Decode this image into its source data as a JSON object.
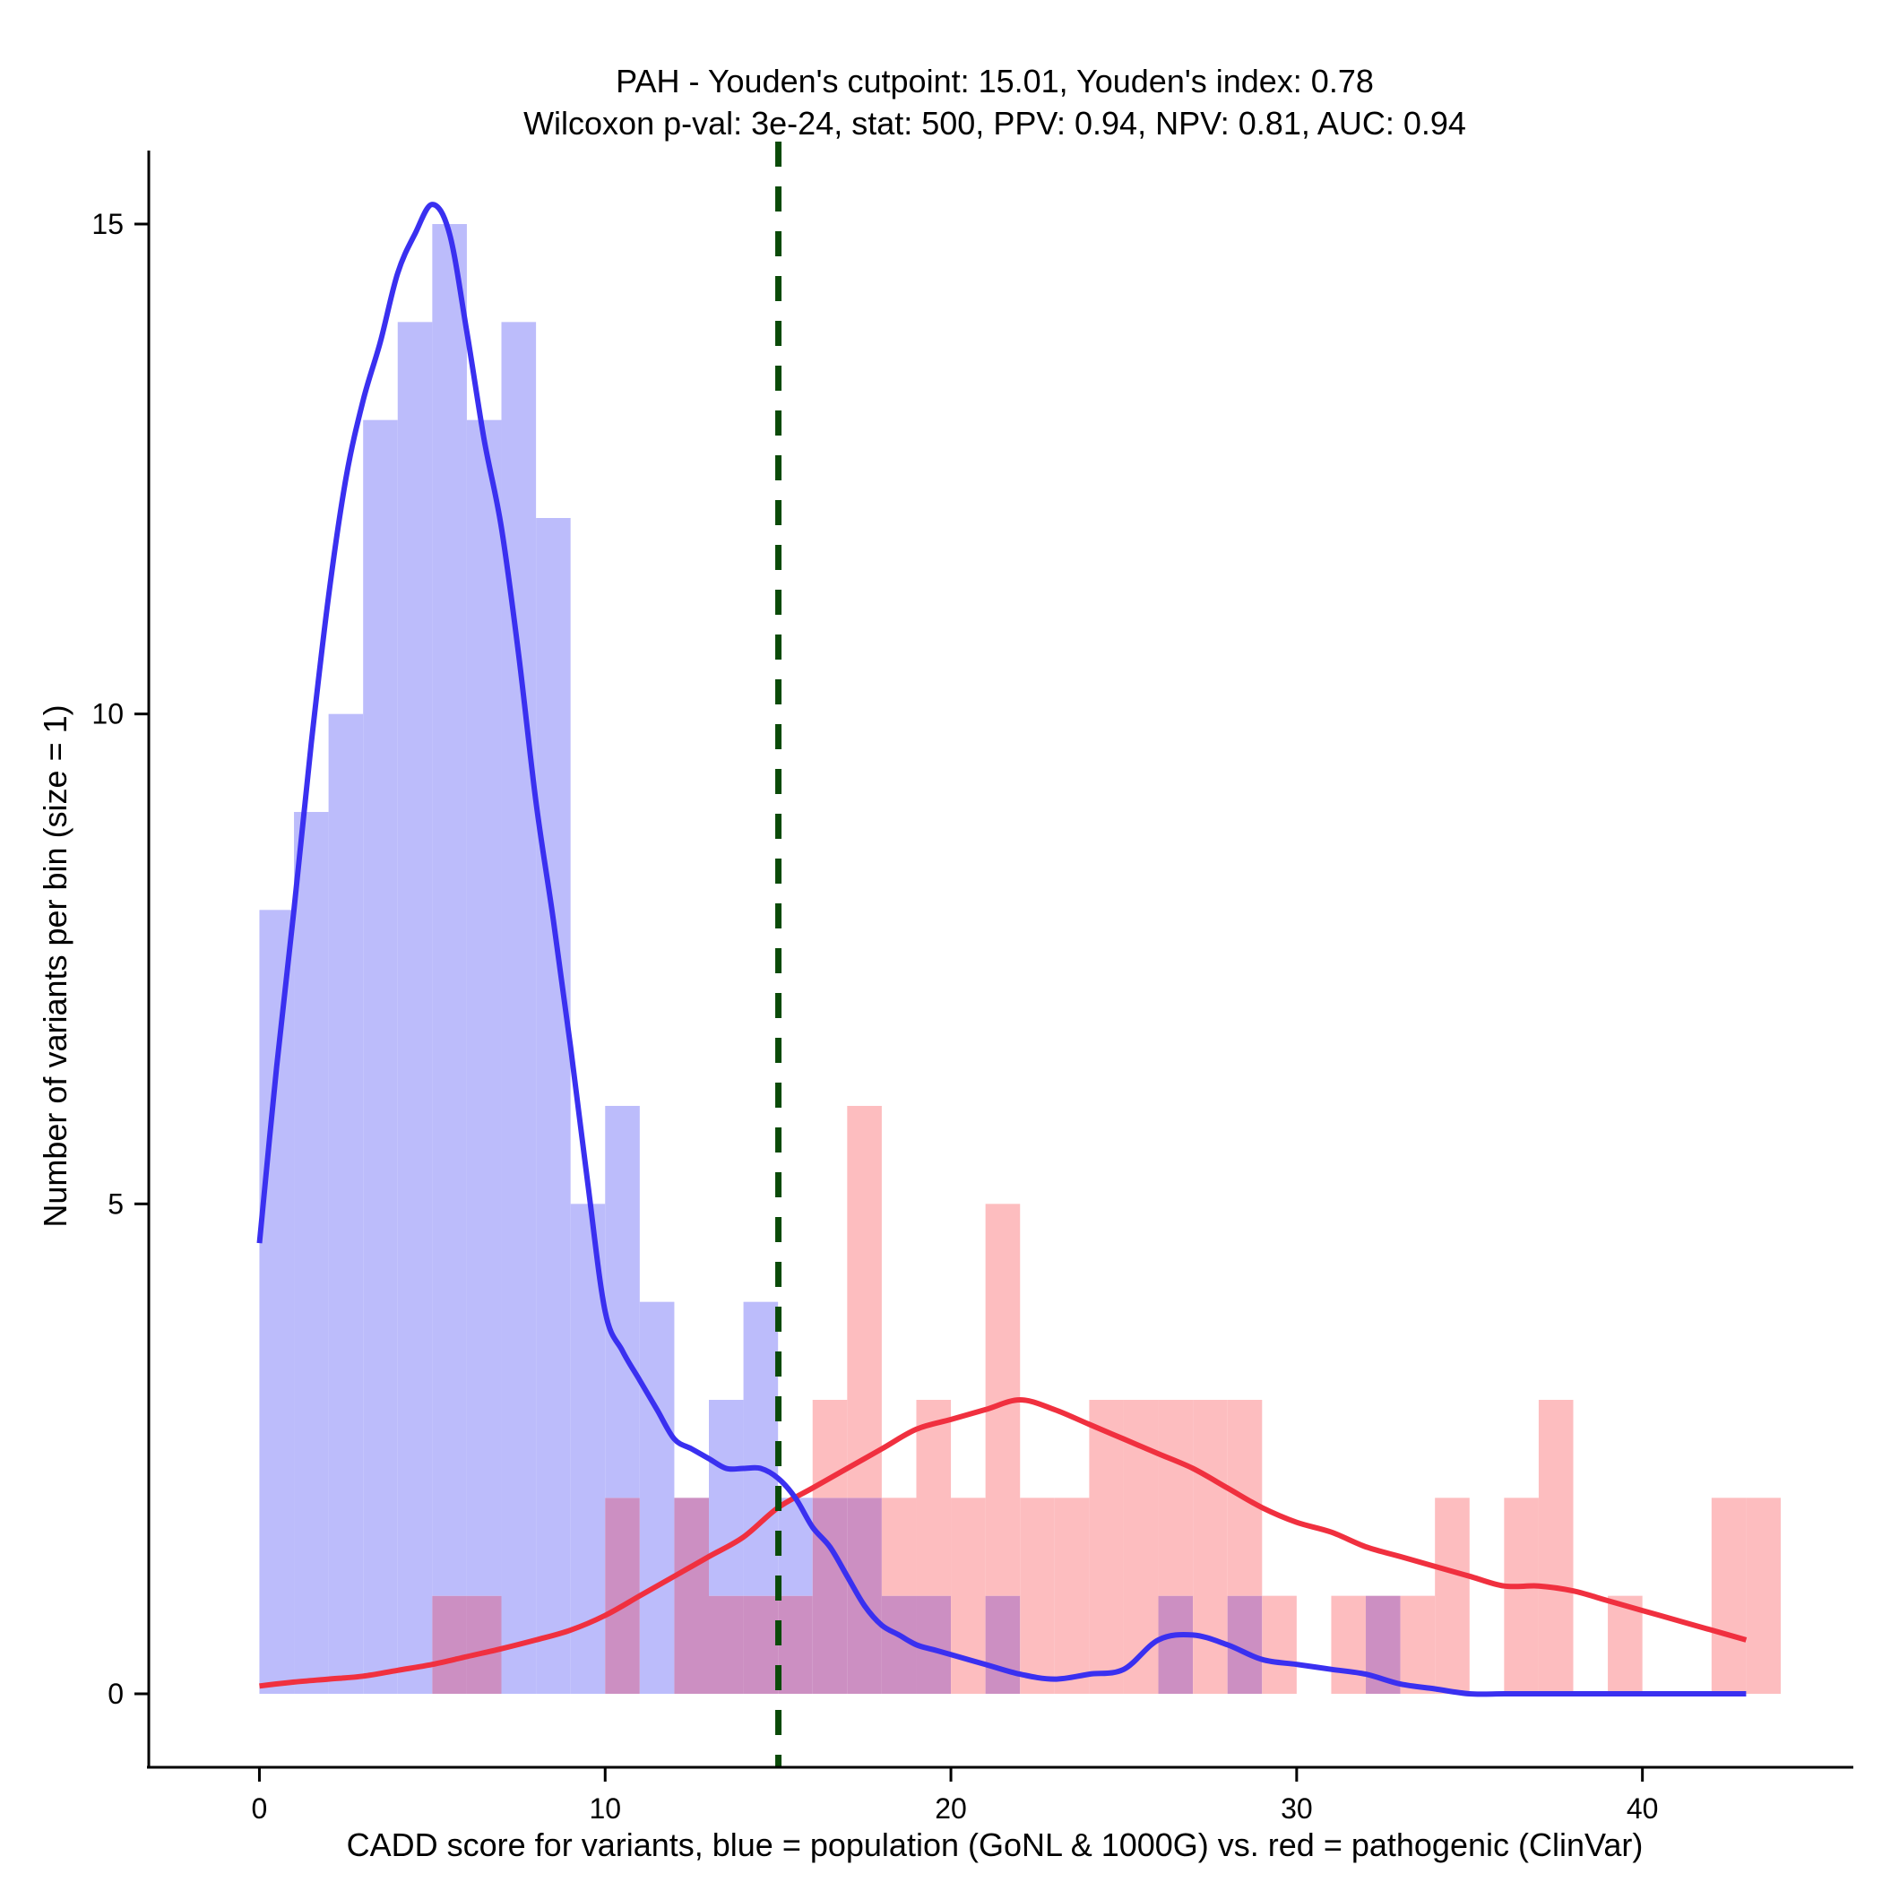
{
  "chart_data": {
    "type": "histogram",
    "title": "PAH - Youden's cutpoint: 15.01, Youden's index: 0.78",
    "subtitle": "Wilcoxon p-val: 3e-24, stat: 500, PPV: 0.94, NPV: 0.81, AUC: 0.94",
    "xlabel": "CADD score for variants, blue = population (GoNL & 1000G) vs. red = pathogenic (ClinVar)",
    "ylabel": "Number of variants per bin (size = 1)",
    "xlim": [
      -3.2,
      46.1
    ],
    "ylim": [
      -0.75,
      15.75
    ],
    "xticks": [
      0,
      10,
      20,
      30,
      40
    ],
    "yticks": [
      0,
      5,
      10,
      15
    ],
    "bin_size": 1,
    "cutpoint": 15.01,
    "colors": {
      "population_fill": "#bcbcfb",
      "pathogenic_fill": "#fdbdbf",
      "overlap_fill": "#cc8fc2",
      "population_line": "#3a30f0",
      "pathogenic_line": "#f0303f",
      "cutpoint_line": "#0a4a08"
    },
    "series": [
      {
        "name": "population (GoNL & 1000G)",
        "color": "#bcbcfb",
        "bin_starts": [
          0,
          1,
          2,
          3,
          4,
          5,
          6,
          7,
          8,
          9,
          10,
          11,
          12,
          13,
          14,
          15,
          16,
          17,
          18,
          19,
          20,
          21,
          22,
          23,
          24,
          25,
          26,
          27,
          28,
          29,
          30,
          31,
          32,
          33,
          34,
          35,
          36,
          37,
          38,
          39,
          40,
          41,
          42,
          43
        ],
        "values": [
          8,
          9,
          10,
          13,
          14,
          15,
          13,
          14,
          12,
          5,
          6,
          4,
          2,
          3,
          4,
          2,
          2,
          2,
          1,
          1,
          0,
          1,
          0,
          0,
          0,
          0,
          1,
          0,
          1,
          0,
          0,
          0,
          1,
          0,
          0,
          0,
          0,
          0,
          0,
          0,
          0,
          0,
          0,
          0
        ]
      },
      {
        "name": "pathogenic (ClinVar)",
        "color": "#fdbdbf",
        "bin_starts": [
          0,
          1,
          2,
          3,
          4,
          5,
          6,
          7,
          8,
          9,
          10,
          11,
          12,
          13,
          14,
          15,
          16,
          17,
          18,
          19,
          20,
          21,
          22,
          23,
          24,
          25,
          26,
          27,
          28,
          29,
          30,
          31,
          32,
          33,
          34,
          35,
          36,
          37,
          38,
          39,
          40,
          41,
          42,
          43
        ],
        "values": [
          0,
          0,
          0,
          0,
          0,
          1,
          1,
          0,
          0,
          0,
          2,
          0,
          2,
          1,
          1,
          1,
          3,
          6,
          2,
          3,
          2,
          5,
          2,
          2,
          3,
          3,
          3,
          3,
          3,
          1,
          0,
          1,
          1,
          1,
          2,
          0,
          2,
          3,
          0,
          1,
          0,
          0,
          2,
          2
        ]
      },
      {
        "name": "population density",
        "color": "#3a30f0",
        "x": [
          0,
          0.5,
          1,
          1.5,
          2,
          2.5,
          3,
          3.5,
          4,
          4.5,
          5,
          5.5,
          6,
          6.5,
          7,
          7.5,
          8,
          8.5,
          9,
          9.5,
          10,
          10.5,
          11,
          11.5,
          12,
          12.5,
          13,
          13.5,
          14,
          14.5,
          15,
          15.5,
          16,
          16.5,
          17,
          17.5,
          18,
          18.5,
          19,
          19.5,
          20,
          21,
          22,
          23,
          24,
          25,
          26,
          27,
          28,
          29,
          30,
          31,
          32,
          33,
          34,
          35,
          36,
          37,
          38,
          39,
          40,
          41,
          42,
          43
        ],
        "values": [
          4.6,
          6.4,
          8.0,
          9.7,
          11.2,
          12.4,
          13.2,
          13.8,
          14.5,
          14.9,
          15.2,
          14.9,
          13.9,
          12.8,
          11.9,
          10.6,
          9.1,
          7.9,
          6.6,
          5.2,
          3.9,
          3.5,
          3.2,
          2.9,
          2.6,
          2.5,
          2.4,
          2.3,
          2.3,
          2.3,
          2.2,
          2.0,
          1.7,
          1.5,
          1.2,
          0.9,
          0.7,
          0.6,
          0.5,
          0.45,
          0.4,
          0.3,
          0.2,
          0.15,
          0.2,
          0.25,
          0.55,
          0.6,
          0.5,
          0.35,
          0.3,
          0.25,
          0.2,
          0.1,
          0.05,
          0,
          0,
          0,
          0,
          0,
          0,
          0,
          0,
          0
        ]
      },
      {
        "name": "pathogenic density",
        "color": "#f0303f",
        "x": [
          0,
          1,
          2,
          3,
          4,
          5,
          6,
          7,
          8,
          9,
          10,
          11,
          12,
          13,
          14,
          15,
          16,
          17,
          18,
          19,
          20,
          21,
          22,
          23,
          24,
          25,
          26,
          27,
          28,
          29,
          30,
          31,
          32,
          33,
          34,
          35,
          36,
          37,
          38,
          39,
          40,
          41,
          42,
          43
        ],
        "values": [
          0.08,
          0.12,
          0.15,
          0.18,
          0.24,
          0.3,
          0.38,
          0.46,
          0.55,
          0.65,
          0.8,
          1.0,
          1.2,
          1.4,
          1.6,
          1.9,
          2.1,
          2.3,
          2.5,
          2.7,
          2.8,
          2.9,
          3.0,
          2.9,
          2.75,
          2.6,
          2.45,
          2.3,
          2.1,
          1.9,
          1.75,
          1.65,
          1.5,
          1.4,
          1.3,
          1.2,
          1.1,
          1.1,
          1.05,
          0.95,
          0.85,
          0.75,
          0.65,
          0.55
        ]
      }
    ]
  }
}
